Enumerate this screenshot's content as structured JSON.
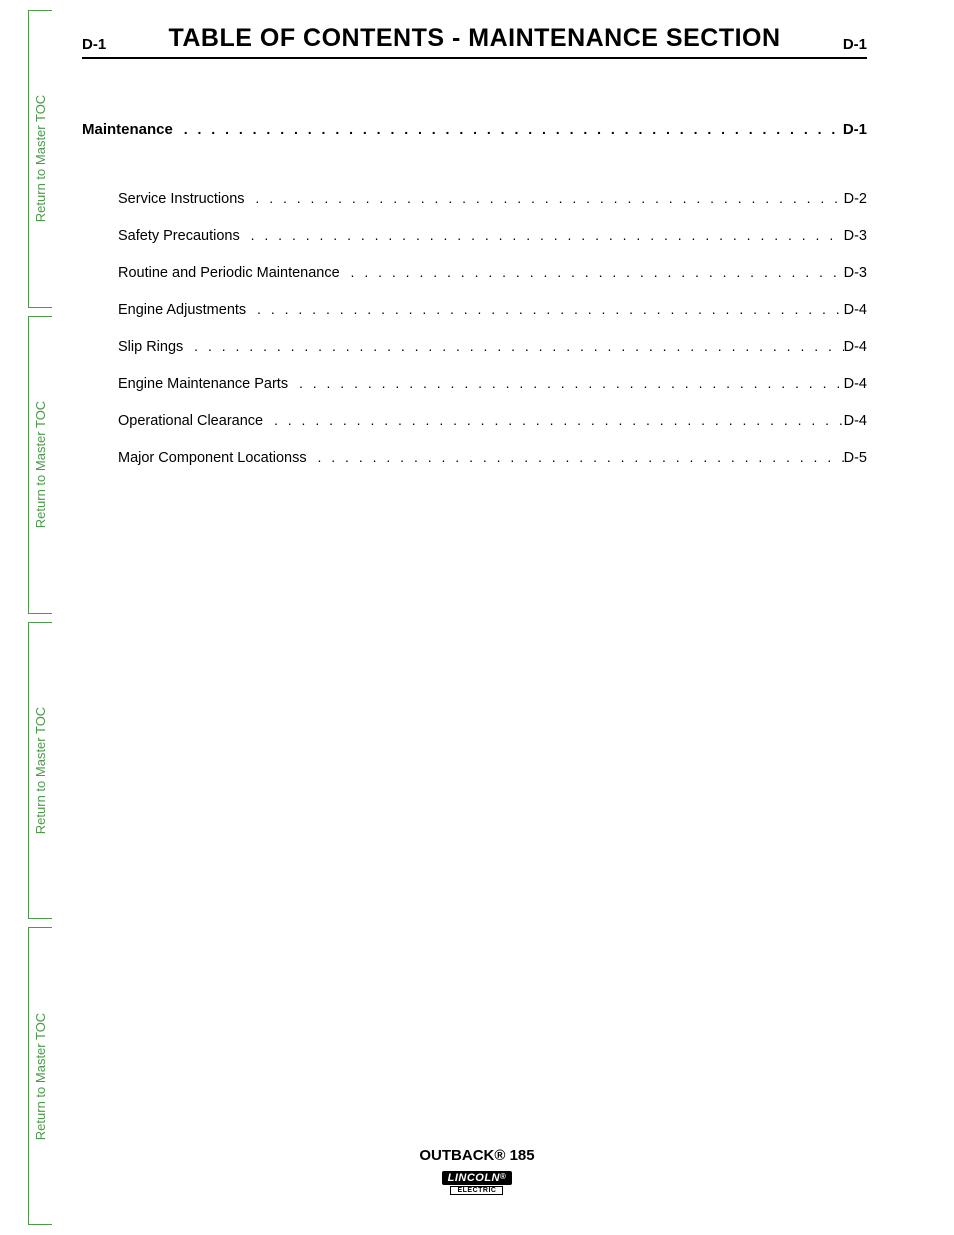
{
  "sidebar": {
    "tabs": [
      {
        "label": "Return to Master TOC"
      },
      {
        "label": "Return to Master TOC"
      },
      {
        "label": "Return to Master TOC"
      },
      {
        "label": "Return to Master TOC"
      }
    ]
  },
  "header": {
    "page_left": "D-1",
    "title": "TABLE OF CONTENTS - MAINTENANCE SECTION",
    "page_right": "D-1"
  },
  "toc": {
    "main": {
      "label": "Maintenance",
      "page": "D-1"
    },
    "items": [
      {
        "label": "Service Instructions",
        "page": "D-2"
      },
      {
        "label": "Safety Precautions",
        "page": "D-3"
      },
      {
        "label": "Routine and Periodic Maintenance",
        "page": "D-3"
      },
      {
        "label": "Engine Adjustments",
        "page": "D-4"
      },
      {
        "label": "Slip Rings",
        "page": "D-4"
      },
      {
        "label": "Engine Maintenance Parts",
        "page": "D-4"
      },
      {
        "label": "Operational Clearance",
        "page": "D-4"
      },
      {
        "label": "Major Component Locationss",
        "page": "D-5"
      }
    ]
  },
  "footer": {
    "product": "OUTBACK® 185",
    "brand_top": "LINCOLN",
    "brand_reg": "®",
    "brand_bottom": "ELECTRIC"
  },
  "colors": {
    "accent": "#4a9a4a",
    "text": "#000000",
    "background": "#ffffff"
  }
}
